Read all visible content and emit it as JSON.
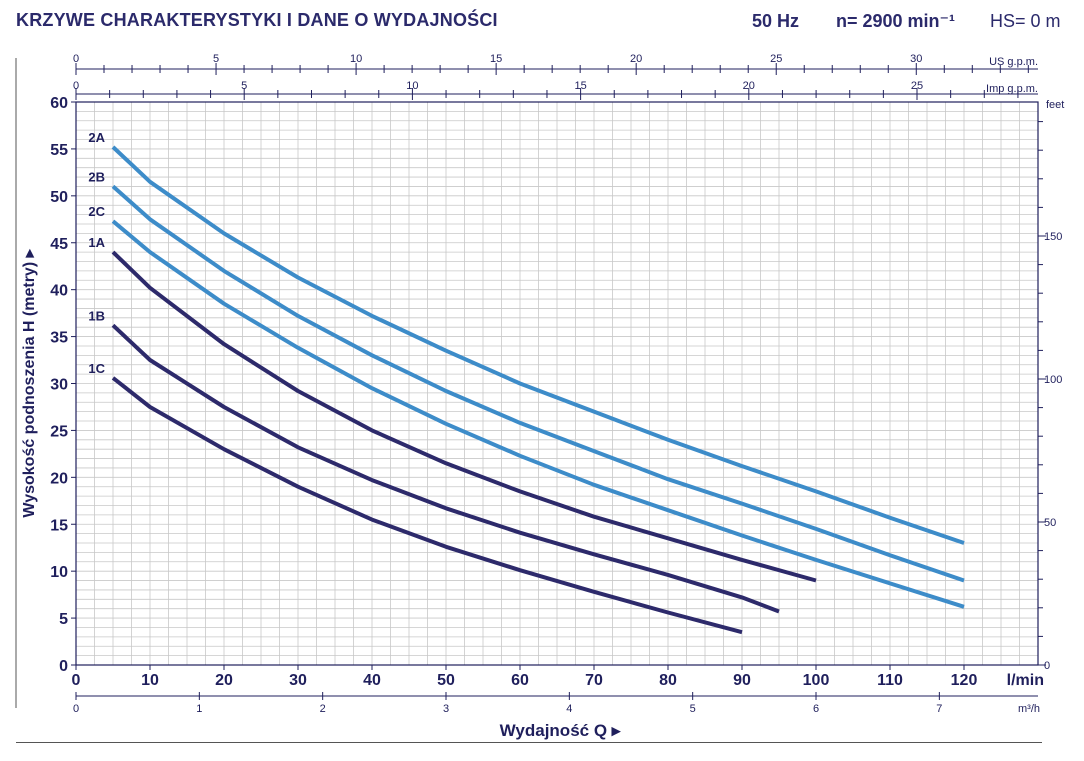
{
  "header": {
    "title": "KRZYWE CHARAKTERYSTYKI I DANE O WYDAJNOŚCI",
    "freq": "50 Hz",
    "speed": "n= 2900 min⁻¹",
    "hs": "HS= 0 m"
  },
  "chart_data": {
    "type": "line",
    "xlabel": "Wydajność Q",
    "ylabel": "Wysokość podnoszenia H  (metry)",
    "x_unit": "l/min",
    "xlim": [
      0,
      130
    ],
    "ylim": [
      0,
      60
    ],
    "x_ticks": [
      0,
      10,
      20,
      30,
      40,
      50,
      60,
      70,
      80,
      90,
      100,
      110,
      120
    ],
    "y_ticks": [
      0,
      5,
      10,
      15,
      20,
      25,
      30,
      35,
      40,
      45,
      50,
      55,
      60
    ],
    "secondary_axes": {
      "top_usgpm": {
        "unit": "US g.p.m.",
        "ticks": [
          0,
          5,
          10,
          15,
          20,
          25,
          30
        ],
        "lpm_per_unit": 3.785
      },
      "top_impgpm": {
        "unit": "Imp g.p.m.",
        "ticks": [
          0,
          5,
          10,
          15,
          20,
          25
        ],
        "lpm_per_unit": 4.546
      },
      "bottom_m3h": {
        "unit": "m³/h",
        "ticks": [
          0,
          1,
          2,
          3,
          4,
          5,
          6,
          7
        ],
        "lpm_per_unit": 16.667
      },
      "right_feet": {
        "unit": "feet",
        "ticks": [
          0,
          50,
          100,
          150
        ],
        "m_per_unit": 0.3048
      }
    },
    "grid": true,
    "series": [
      {
        "name": "2A",
        "color": "#3d8cc9",
        "x": [
          5,
          10,
          20,
          30,
          40,
          50,
          60,
          70,
          80,
          90,
          100,
          110,
          120
        ],
        "y": [
          55.2,
          51.5,
          46.0,
          41.3,
          37.2,
          33.5,
          30.0,
          27.0,
          24.0,
          21.2,
          18.5,
          15.7,
          13.0
        ]
      },
      {
        "name": "2B",
        "color": "#3d8cc9",
        "x": [
          5,
          10,
          20,
          30,
          40,
          50,
          60,
          70,
          80,
          90,
          100,
          110,
          120
        ],
        "y": [
          51.0,
          47.5,
          42.0,
          37.2,
          33.0,
          29.2,
          25.8,
          22.8,
          19.8,
          17.2,
          14.5,
          11.7,
          9.0
        ]
      },
      {
        "name": "2C",
        "color": "#3d8cc9",
        "x": [
          5,
          10,
          20,
          30,
          40,
          50,
          60,
          70,
          80,
          90,
          100,
          110,
          120
        ],
        "y": [
          47.3,
          44.0,
          38.5,
          33.8,
          29.5,
          25.7,
          22.3,
          19.2,
          16.5,
          13.8,
          11.2,
          8.7,
          6.2
        ]
      },
      {
        "name": "1A",
        "color": "#2d2a6b",
        "x": [
          5,
          10,
          20,
          30,
          40,
          50,
          60,
          70,
          80,
          90,
          100
        ],
        "y": [
          44.0,
          40.2,
          34.2,
          29.2,
          25.0,
          21.5,
          18.5,
          15.8,
          13.5,
          11.2,
          9.0
        ]
      },
      {
        "name": "1B",
        "color": "#2d2a6b",
        "x": [
          5,
          10,
          20,
          30,
          40,
          50,
          60,
          70,
          80,
          90,
          95
        ],
        "y": [
          36.2,
          32.5,
          27.5,
          23.2,
          19.7,
          16.7,
          14.1,
          11.8,
          9.6,
          7.2,
          5.7
        ]
      },
      {
        "name": "1C",
        "color": "#2d2a6b",
        "x": [
          5,
          10,
          20,
          30,
          40,
          50,
          60,
          70,
          80,
          90
        ],
        "y": [
          30.6,
          27.5,
          23.0,
          19.0,
          15.5,
          12.6,
          10.1,
          7.8,
          5.6,
          3.5
        ]
      }
    ]
  }
}
